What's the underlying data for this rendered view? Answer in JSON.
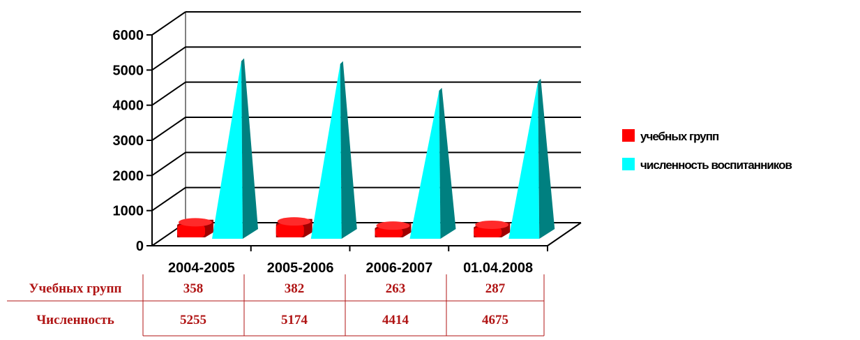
{
  "colors": {
    "groups": "#ff0000",
    "groups_dark": "#a00000",
    "pupils": "#00ffff",
    "pupils_dark": "#008080",
    "pupils_side": "#00a0a0",
    "table_text": "#b01414",
    "table_line": "#b01414",
    "grid": "#000000"
  },
  "chart_data": {
    "type": "bar",
    "style": "3d-cone-columns",
    "categories": [
      "2004-2005",
      "2005-2006",
      "2006-2007",
      "01.04.2008"
    ],
    "series": [
      {
        "name": "учебных групп",
        "values": [
          358,
          382,
          263,
          287
        ]
      },
      {
        "name": "численность воспитанников",
        "values": [
          5255,
          5174,
          4414,
          4675
        ]
      }
    ],
    "ylim": [
      0,
      6000
    ],
    "yticks": [
      "0",
      "1000",
      "2000",
      "3000",
      "4000",
      "5000",
      "6000"
    ],
    "grid": true,
    "legend_position": "right"
  },
  "table": {
    "rows": [
      {
        "label": "Учебных групп",
        "values": [
          "358",
          "382",
          "263",
          "287"
        ]
      },
      {
        "label": "Численность",
        "values": [
          "5255",
          "5174",
          "4414",
          "4675"
        ]
      }
    ]
  }
}
